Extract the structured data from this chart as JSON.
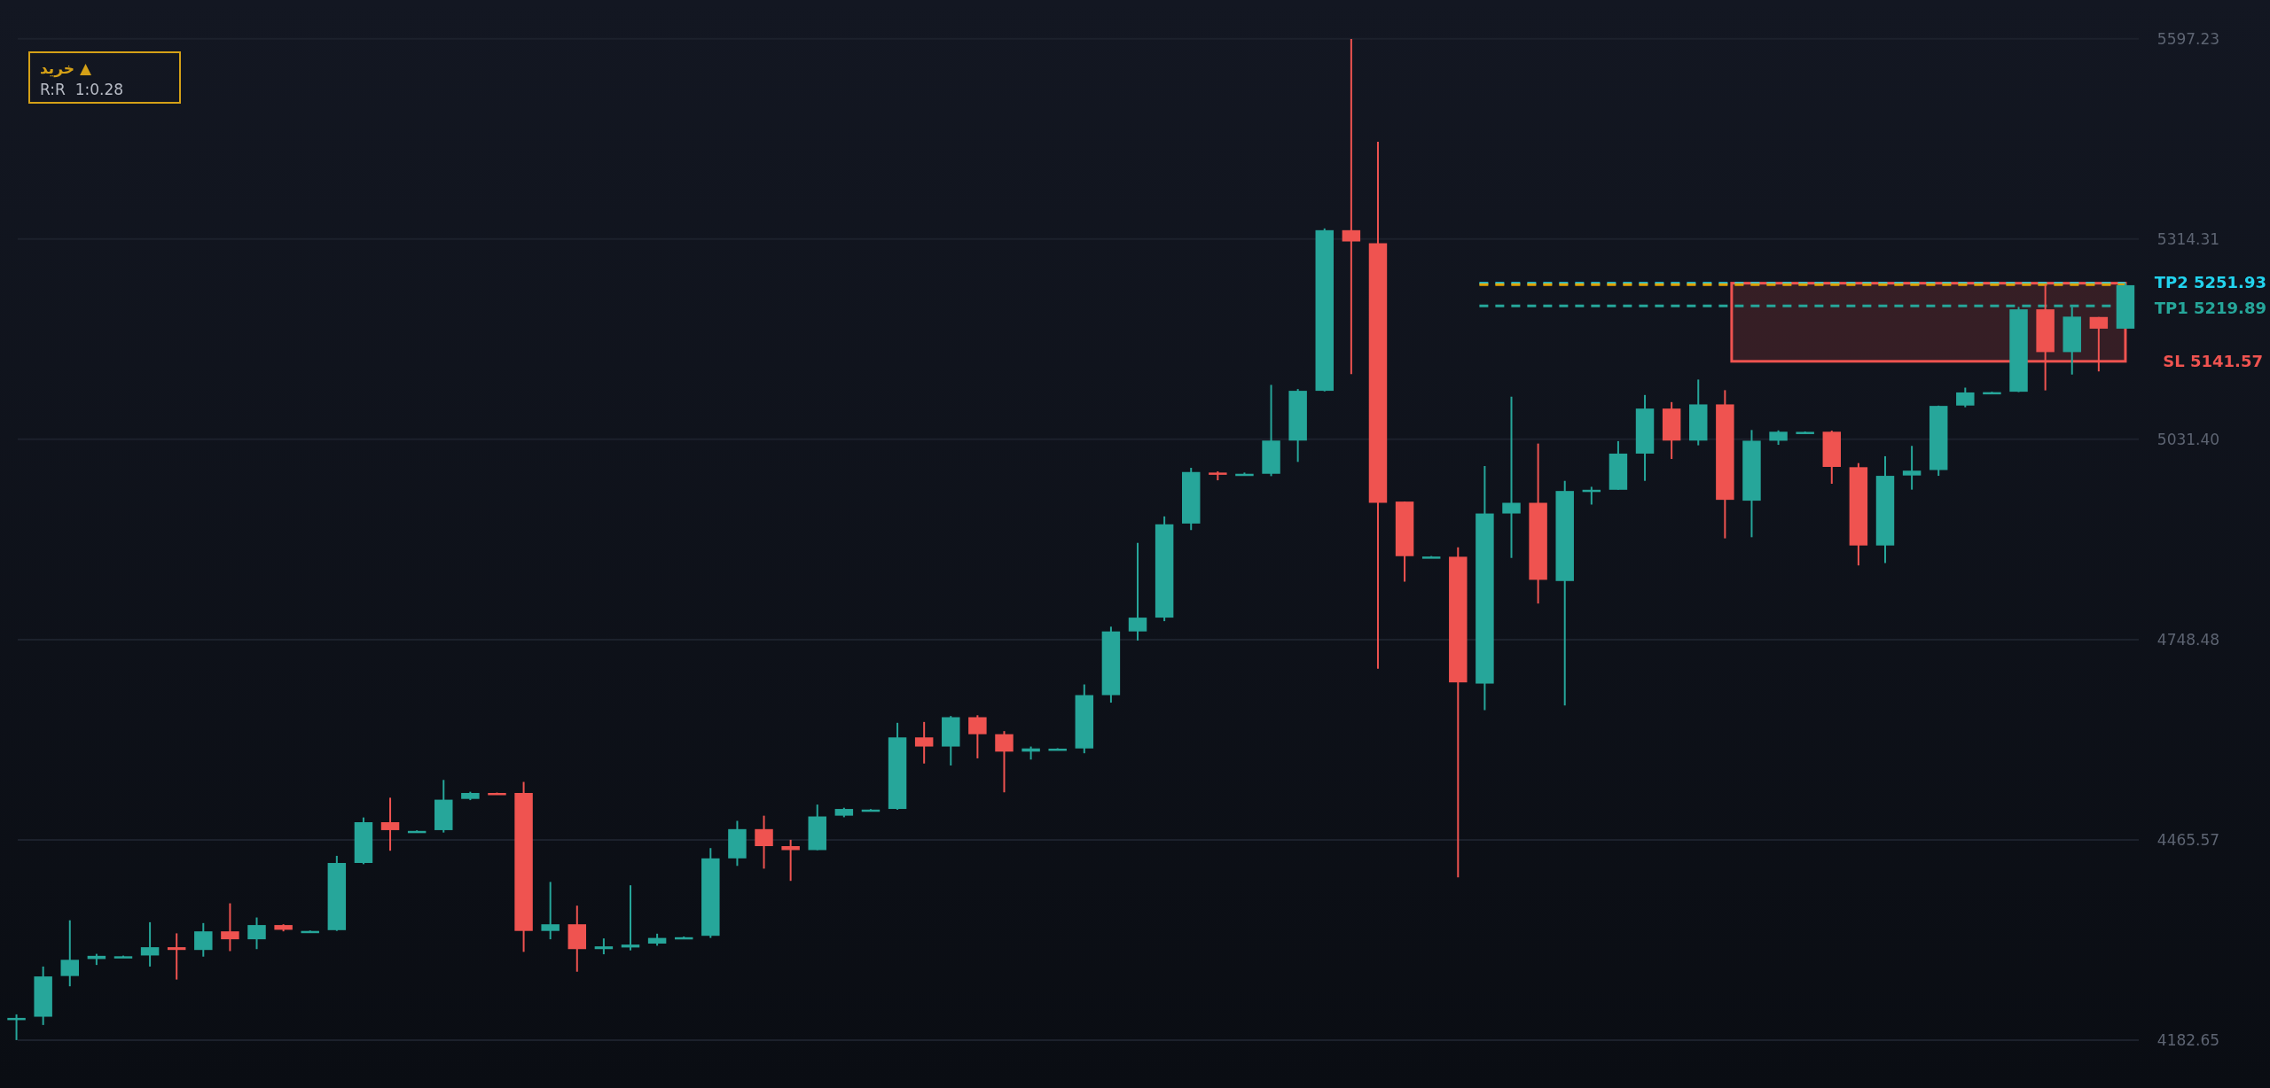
{
  "chart_data": {
    "type": "candlestick",
    "categories": [
      null,
      null,
      null,
      null,
      null,
      null,
      null,
      null,
      null,
      null,
      null,
      null,
      null,
      null,
      null,
      null,
      null,
      null,
      null,
      null,
      null,
      null,
      null,
      null,
      null,
      null,
      null,
      null,
      null,
      null,
      null,
      null,
      null,
      null,
      null,
      null,
      null,
      null,
      null,
      null,
      null,
      null,
      null,
      null,
      null,
      null,
      null,
      null,
      null,
      null,
      null,
      null,
      null,
      null,
      null,
      null,
      null,
      null,
      null,
      null,
      null,
      null,
      null,
      null,
      null,
      null,
      null,
      null,
      null,
      null,
      null,
      null,
      null,
      null,
      null,
      null,
      null,
      null,
      null,
      null
    ],
    "ohlc": [
      [
        4213,
        4219,
        4182.7,
        4214
      ],
      [
        4215.7,
        4286.6,
        4204,
        4272.6
      ],
      [
        4273.2,
        4351.9,
        4258.7,
        4296.1
      ],
      [
        4297.2,
        4304.5,
        4288.8,
        4301.7
      ],
      [
        4300.5,
        4302,
        4300,
        4301.1
      ],
      [
        4302.2,
        4349.2,
        4286.6,
        4313.9
      ],
      [
        4313.9,
        4333.5,
        4268.2,
        4310
      ],
      [
        4310,
        4348,
        4300.6,
        4336.3
      ],
      [
        4336.3,
        4375.9,
        4308.4,
        4325.1
      ],
      [
        4325.1,
        4355.9,
        4311.2,
        4345.2
      ],
      [
        4345.2,
        4346.3,
        4336.3,
        4338.5
      ],
      [
        4336,
        4337.5,
        4335.5,
        4336.9
      ],
      [
        4338,
        4443,
        4336.9,
        4432.9
      ],
      [
        4432.9,
        4497.2,
        4431.2,
        4490.5
      ],
      [
        4490.5,
        4525.1,
        4450.2,
        4479.3
      ],
      [
        4477.6,
        4479,
        4477,
        4478.2
      ],
      [
        4479.3,
        4550.2,
        4475.9,
        4522.3
      ],
      [
        4523.4,
        4533.5,
        4521.7,
        4531.8
      ],
      [
        4531.8,
        4532.3,
        4530.6,
        4531.2
      ],
      [
        4531.8,
        4547.4,
        4307.3,
        4336.9
      ],
      [
        4336.9,
        4406.1,
        4325.1,
        4346.3
      ],
      [
        4346.3,
        4372.6,
        4279.3,
        4311.2
      ],
      [
        4311.2,
        4326.3,
        4303.9,
        4315.1
      ],
      [
        4313.5,
        4401.4,
        4309.4,
        4317.6
      ],
      [
        4319,
        4333,
        4316,
        4327
      ],
      [
        4327,
        4329,
        4326,
        4328
      ],
      [
        4330,
        4453.9,
        4327,
        4439.4
      ],
      [
        4439.4,
        4492.4,
        4428.8,
        4480.7
      ],
      [
        4480.7,
        4499.7,
        4424.9,
        4456.7
      ],
      [
        4456.7,
        4465.6,
        4407.6,
        4451.1
      ],
      [
        4451.1,
        4515.4,
        4451,
        4498.6
      ],
      [
        4499.7,
        4510.9,
        4497.5,
        4509.2
      ],
      [
        4507.8,
        4509,
        4507,
        4508.3
      ],
      [
        4509.2,
        4630.9,
        4508.1,
        4610.3
      ],
      [
        4610.3,
        4632.1,
        4573.4,
        4597.4
      ],
      [
        4597.4,
        4640.5,
        4570.6,
        4638.8
      ],
      [
        4638.8,
        4641.6,
        4580.7,
        4614.8
      ],
      [
        4614.8,
        4619.2,
        4532.7,
        4590.2
      ],
      [
        4590.2,
        4597.4,
        4579,
        4594.7
      ],
      [
        4593.8,
        4595,
        4593,
        4594.4
      ],
      [
        4594.7,
        4685.1,
        4587.9,
        4670
      ],
      [
        4670,
        4766.7,
        4659.4,
        4760
      ],
      [
        4760,
        4885.1,
        4747.1,
        4779.5
      ],
      [
        4779.5,
        4922.5,
        4774.5,
        4911.3
      ],
      [
        4912.4,
        4991.1,
        4903.2,
        4985.2
      ],
      [
        4984.4,
        4986.1,
        4973.5,
        4982.7
      ],
      [
        4981,
        4984.4,
        4980.2,
        4982.7
      ],
      [
        4982.7,
        5108.3,
        4979.4,
        5029.6
      ],
      [
        5029.6,
        5102.4,
        4999.5,
        5099.9
      ],
      [
        5099.9,
        5329.3,
        5099.1,
        5326.8
      ],
      [
        5326.8,
        5597,
        5123.4,
        5310.9
      ],
      [
        5308.4,
        5451.6,
        4707.3,
        4941.7
      ],
      [
        4943.4,
        4943.4,
        4830.3,
        4866.3
      ],
      [
        4865,
        4866.5,
        4864.5,
        4865.8
      ],
      [
        4865.5,
        4878.9,
        4412.6,
        4688
      ],
      [
        4686.3,
        4993.6,
        4648.7,
        4926.6
      ],
      [
        4926.6,
        5091.6,
        4863.8,
        4941.7
      ],
      [
        4941.7,
        5025.4,
        4799.4,
        4832.9
      ],
      [
        4831.2,
        4972.7,
        4655.4,
        4958.4
      ],
      [
        4957.6,
        4964.3,
        4939.2,
        4960.1
      ],
      [
        4960.1,
        5028.8,
        4960.1,
        5011.2
      ],
      [
        5011.2,
        5094,
        4972.7,
        5074.8
      ],
      [
        5074.8,
        5084,
        5003.6,
        5029.6
      ],
      [
        5029.6,
        5115.8,
        5022.9,
        5080.7
      ],
      [
        5080.7,
        5100.8,
        4891.5,
        4945.9
      ],
      [
        4944.7,
        5044.5,
        4893.1,
        5029.4
      ],
      [
        5029.4,
        5044,
        5023.6,
        5042.1
      ],
      [
        5041.3,
        5042.5,
        5040.8,
        5041.9
      ],
      [
        5042.1,
        5043.6,
        4968.6,
        4992.4
      ],
      [
        4992,
        4997.8,
        4853.2,
        4881.4
      ],
      [
        4881.4,
        5007.5,
        4856.6,
        4979.8
      ],
      [
        4980.3,
        5022.1,
        4960.3,
        4987.1
      ],
      [
        4988,
        5079,
        4979.8,
        5078.6
      ],
      [
        5079.1,
        5104.4,
        5076.7,
        5097.6
      ],
      [
        5097.4,
        5098.5,
        5097,
        5098
      ],
      [
        5098.6,
        5218.4,
        5098.1,
        5215
      ],
      [
        5215,
        5250,
        5100.5,
        5154.6
      ],
      [
        5154.6,
        5218.4,
        5122.9,
        5204.7
      ],
      [
        5204.2,
        5204.2,
        5127.3,
        5187.7
      ],
      [
        5187.7,
        5251.9,
        5187.7,
        5249.1
      ]
    ],
    "colors": [
      "#26a69a",
      "#26a69a",
      "#26a69a",
      "#26a69a",
      "#26a69a",
      "#26a69a",
      "#ef5350",
      "#26a69a",
      "#ef5350",
      "#26a69a",
      "#ef5350",
      "#26a69a",
      "#26a69a",
      "#26a69a",
      "#ef5350",
      "#26a69a",
      "#26a69a",
      "#26a69a",
      "#ef5350",
      "#ef5350",
      "#26a69a",
      "#ef5350",
      "#26a69a",
      "#26a69a",
      "#26a69a",
      "#26a69a",
      "#26a69a",
      "#26a69a",
      "#ef5350",
      "#ef5350",
      "#26a69a",
      "#26a69a",
      "#26a69a",
      "#26a69a",
      "#ef5350",
      "#26a69a",
      "#ef5350",
      "#ef5350",
      "#26a69a",
      "#26a69a",
      "#26a69a",
      "#26a69a",
      "#26a69a",
      "#26a69a",
      "#26a69a",
      "#ef5350",
      "#26a69a",
      "#26a69a",
      "#26a69a",
      "#26a69a",
      "#ef5350",
      "#ef5350",
      "#ef5350",
      "#26a69a",
      "#ef5350",
      "#26a69a",
      "#26a69a",
      "#ef5350",
      "#26a69a",
      "#26a69a",
      "#26a69a",
      "#26a69a",
      "#ef5350",
      "#26a69a",
      "#ef5350",
      "#26a69a",
      "#26a69a",
      "#26a69a",
      "#ef5350",
      "#ef5350",
      "#26a69a",
      "#26a69a",
      "#26a69a",
      "#26a69a",
      "#26a69a",
      "#26a69a",
      "#ef5350",
      "#26a69a",
      "#ef5350",
      "#26a69a"
    ],
    "ylim": [
      4115,
      5652
    ],
    "yticks": [
      {
        "value": 4182.65,
        "label": "4182.65"
      },
      {
        "value": 4465.57,
        "label": "4465.57"
      },
      {
        "value": 4748.48,
        "label": "4748.48"
      },
      {
        "value": 5031.4,
        "label": "5031.40"
      },
      {
        "value": 5314.31,
        "label": "5314.31"
      },
      {
        "value": 5597.23,
        "label": "5597.23"
      }
    ],
    "grid": "y",
    "ref_lines": [
      {
        "axis": "y",
        "value": 5251.93,
        "label": "TP2 5251.93",
        "color": "#22d3ee",
        "line_style": "dashed"
      },
      {
        "axis": "y",
        "value": 5219.89,
        "label": "TP1 5219.89",
        "color": "#26a69a",
        "line_style": "dashed"
      },
      {
        "axis": "y",
        "value": 5250,
        "color": "#e0a100",
        "line_style": "dashed"
      }
    ],
    "bands": [
      {
        "axis": "y",
        "from": 5141.57,
        "to": 5251.93,
        "label": "SL 5141.57",
        "color": "#ef5350"
      }
    ],
    "annotations": [
      "خرید ▲",
      "R:R  1:0.28"
    ]
  }
}
